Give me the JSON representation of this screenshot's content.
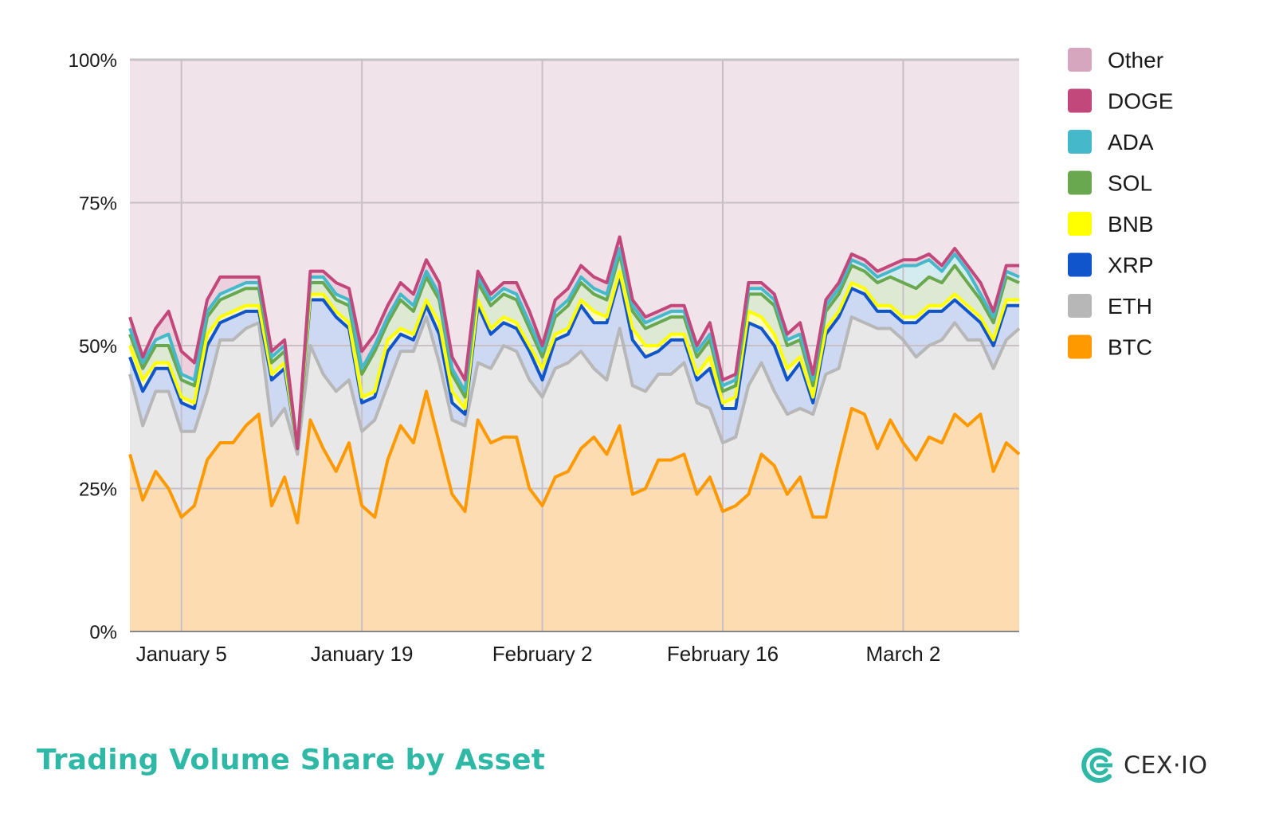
{
  "chart_data": {
    "type": "area",
    "stacked": true,
    "title": "Trading Volume Share by Asset",
    "yticks": [
      "0%",
      "25%",
      "50%",
      "75%",
      "100%"
    ],
    "ylim": [
      0,
      100
    ],
    "xtick_labels": [
      "January 5",
      "January 19",
      "February 2",
      "February 16",
      "March 2"
    ],
    "xtick_indices": [
      4,
      18,
      32,
      46,
      60
    ],
    "x_start": "2024-01-01",
    "x_end": "2024-03-11",
    "grid": true,
    "legend_position": "right",
    "legend": [
      "Other",
      "DOGE",
      "ADA",
      "SOL",
      "BNB",
      "XRP",
      "ETH",
      "BTC"
    ],
    "series": [
      {
        "name": "BTC",
        "color": "#ff9900",
        "fill": "#fcdcb0",
        "values": [
          31,
          23,
          28,
          25,
          20,
          22,
          30,
          33,
          33,
          36,
          38,
          22,
          27,
          19,
          37,
          32,
          28,
          33,
          22,
          20,
          30,
          36,
          33,
          42,
          33,
          24,
          21,
          37,
          33,
          34,
          34,
          25,
          22,
          27,
          28,
          32,
          34,
          31,
          36,
          24,
          25,
          30,
          30,
          31,
          24,
          27,
          21,
          22,
          24,
          31,
          29,
          24,
          27,
          20,
          20,
          30,
          39,
          38,
          32,
          37,
          33,
          30,
          34,
          33,
          38,
          36,
          38,
          28,
          33,
          31
        ]
      },
      {
        "name": "ETH",
        "color": "#b7b7b7",
        "fill": "#e8e8e8",
        "values": [
          14,
          13,
          14,
          17,
          15,
          13,
          12,
          18,
          18,
          17,
          16,
          14,
          12,
          12,
          13,
          13,
          14,
          11,
          13,
          17,
          13,
          13,
          16,
          13,
          14,
          13,
          15,
          10,
          13,
          16,
          15,
          19,
          19,
          19,
          19,
          17,
          12,
          13,
          17,
          19,
          17,
          15,
          15,
          16,
          16,
          12,
          12,
          12,
          19,
          16,
          13,
          14,
          12,
          18,
          25,
          16,
          16,
          16,
          21,
          16,
          18,
          18,
          16,
          18,
          16,
          15,
          13,
          18,
          18,
          22
        ]
      },
      {
        "name": "XRP",
        "color": "#1155cc",
        "fill": "#cdd9f3",
        "values": [
          3,
          6,
          4,
          4,
          5,
          4,
          8,
          3,
          4,
          3,
          2,
          8,
          7,
          1,
          8,
          13,
          13,
          9,
          5,
          4,
          6,
          3,
          2,
          2,
          5,
          3,
          2,
          10,
          6,
          4,
          4,
          5,
          3,
          5,
          5,
          8,
          8,
          10,
          9,
          8,
          6,
          4,
          6,
          4,
          4,
          7,
          6,
          5,
          11,
          6,
          8,
          6,
          8,
          2,
          7,
          9,
          5,
          5,
          3,
          3,
          3,
          6,
          6,
          5,
          4,
          5,
          3,
          4,
          6,
          4
        ]
      },
      {
        "name": "BNB",
        "color": "#ffff00",
        "fill": "#fcfcc0",
        "values": [
          2,
          2,
          1,
          1,
          1,
          1,
          2,
          1,
          1,
          1,
          1,
          1,
          1,
          0,
          1,
          1,
          1,
          1,
          1,
          1,
          2,
          1,
          1,
          1,
          2,
          2,
          1,
          1,
          1,
          1,
          1,
          1,
          2,
          1,
          1,
          1,
          2,
          1,
          1,
          2,
          2,
          1,
          1,
          1,
          1,
          2,
          1,
          2,
          2,
          2,
          2,
          2,
          1,
          1,
          1,
          1,
          1,
          1,
          1,
          1,
          1,
          1,
          1,
          1,
          1,
          1,
          1,
          1,
          1,
          1
        ]
      },
      {
        "name": "SOL",
        "color": "#6aa84f",
        "fill": "#dde9d3",
        "values": [
          2,
          2,
          3,
          3,
          3,
          3,
          3,
          3,
          3,
          3,
          3,
          2,
          2,
          0,
          2,
          2,
          2,
          3,
          4,
          7,
          3,
          5,
          4,
          4,
          4,
          3,
          2,
          3,
          4,
          4,
          4,
          3,
          2,
          3,
          4,
          3,
          3,
          3,
          3,
          3,
          3,
          4,
          3,
          3,
          3,
          3,
          2,
          2,
          3,
          4,
          5,
          4,
          3,
          2,
          3,
          3,
          3,
          3,
          4,
          5,
          6,
          5,
          5,
          4,
          5,
          4,
          3,
          3,
          4,
          3
        ]
      },
      {
        "name": "ADA",
        "color": "#45b8c9",
        "fill": "#d4ecf0",
        "values": [
          1,
          1,
          1,
          2,
          1,
          1,
          1,
          1,
          1,
          1,
          1,
          1,
          1,
          0,
          1,
          1,
          1,
          1,
          1,
          1,
          1,
          1,
          1,
          1,
          1,
          1,
          1,
          1,
          1,
          1,
          1,
          1,
          1,
          1,
          1,
          1,
          1,
          1,
          1,
          1,
          1,
          1,
          1,
          1,
          1,
          1,
          1,
          1,
          1,
          1,
          1,
          1,
          1,
          1,
          1,
          1,
          1,
          1,
          1,
          1,
          3,
          4,
          3,
          2,
          2,
          2,
          1,
          1,
          1,
          1
        ]
      },
      {
        "name": "DOGE",
        "color": "#c2477b",
        "fill": "#edd0dd",
        "values": [
          2,
          1,
          2,
          4,
          4,
          3,
          2,
          3,
          2,
          1,
          1,
          1,
          1,
          0,
          1,
          1,
          2,
          2,
          3,
          2,
          2,
          2,
          2,
          2,
          2,
          2,
          2,
          1,
          1,
          1,
          2,
          2,
          1,
          2,
          2,
          2,
          2,
          2,
          2,
          1,
          1,
          1,
          1,
          1,
          1,
          2,
          1,
          1,
          1,
          1,
          1,
          1,
          2,
          1,
          1,
          1,
          1,
          1,
          1,
          1,
          1,
          1,
          1,
          1,
          1,
          1,
          2,
          1,
          1,
          2
        ]
      }
    ],
    "other": {
      "name": "Other",
      "color": "#d6a6be",
      "fill": "#f0e3ea"
    }
  },
  "footer": {
    "title": "Trading Volume Share by Asset",
    "brand": "CEX·IO"
  }
}
